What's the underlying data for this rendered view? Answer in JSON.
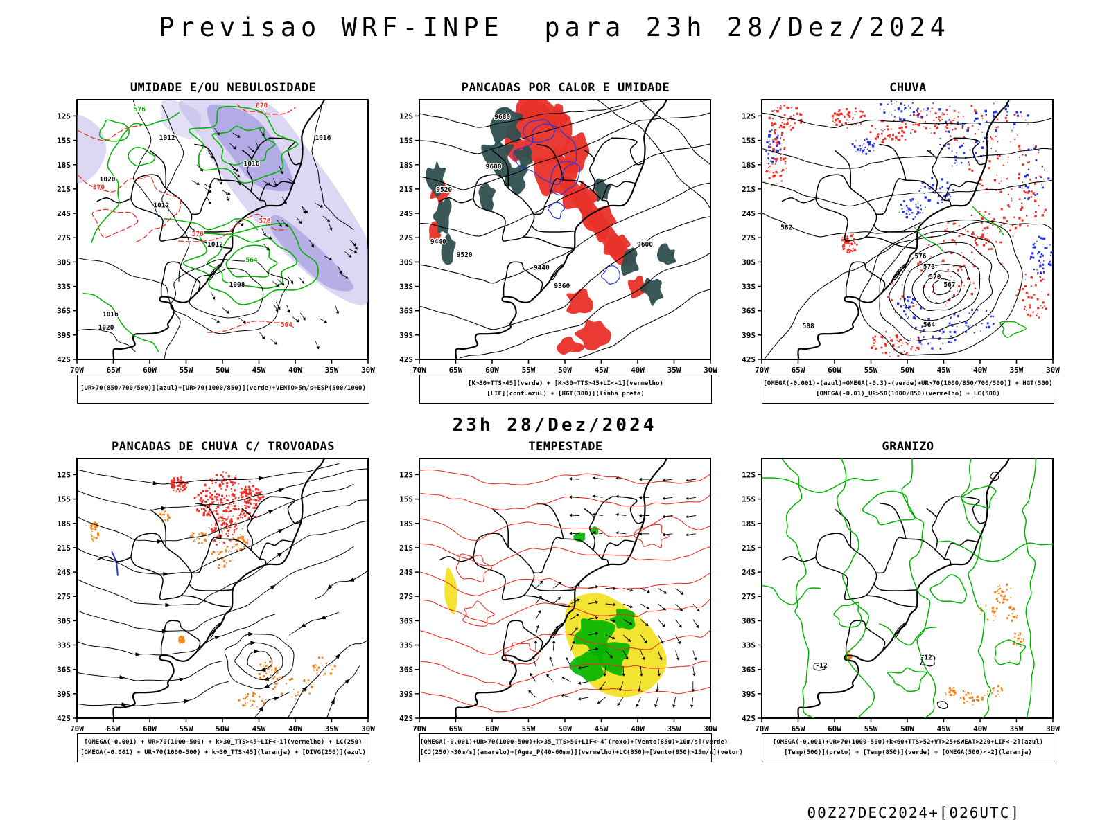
{
  "title": "Previsao WRF-INPE  para 23h 28/Dez/2024",
  "valid_label": "23h 28/Dez/2024",
  "run_label": "00Z27DEC2024+[026UTC]",
  "axes": {
    "lat_ticks": [
      "12S",
      "15S",
      "18S",
      "21S",
      "24S",
      "27S",
      "30S",
      "33S",
      "36S",
      "39S",
      "42S"
    ],
    "lon_ticks": [
      "70W",
      "65W",
      "60W",
      "55W",
      "50W",
      "45W",
      "40W",
      "35W",
      "30W"
    ]
  },
  "palette": {
    "green": "#00b400",
    "red": "#e83028",
    "blue": "#2336e0",
    "dark_teal": "#2f4f4f",
    "purple_light": "#b9b2e8",
    "purple_mid": "#8f86d8",
    "yellow": "#f2e326",
    "orange": "#f08018",
    "black": "#000000"
  },
  "panels": [
    {
      "id": "umidade",
      "title": "UMIDADE E/OU NEBULOSIDADE",
      "caption_lines": [
        "[UR>70(850/700/500)](azul)+[UR>70(1000/850)](verde)+VENTO>5m/s+ESP(500/1000)"
      ],
      "map_labels": [
        {
          "text": "1012",
          "fx": 0.31,
          "fy": 0.155,
          "color": "black"
        },
        {
          "text": "1016",
          "fx": 0.6,
          "fy": 0.255,
          "color": "black"
        },
        {
          "text": "1016",
          "fx": 0.845,
          "fy": 0.155,
          "color": "black"
        },
        {
          "text": "1020",
          "fx": 0.105,
          "fy": 0.315,
          "color": "black"
        },
        {
          "text": "1012",
          "fx": 0.29,
          "fy": 0.415,
          "color": "black"
        },
        {
          "text": "1012",
          "fx": 0.475,
          "fy": 0.565,
          "color": "black"
        },
        {
          "text": "1008",
          "fx": 0.55,
          "fy": 0.72,
          "color": "black"
        },
        {
          "text": "1016",
          "fx": 0.115,
          "fy": 0.835,
          "color": "black"
        },
        {
          "text": "1020",
          "fx": 0.1,
          "fy": 0.885,
          "color": "black"
        },
        {
          "text": "870",
          "fx": 0.635,
          "fy": 0.03,
          "color": "red"
        },
        {
          "text": "870",
          "fx": 0.075,
          "fy": 0.345,
          "color": "red"
        },
        {
          "text": "570",
          "fx": 0.415,
          "fy": 0.525,
          "color": "red"
        },
        {
          "text": "570",
          "fx": 0.645,
          "fy": 0.475,
          "color": "red"
        },
        {
          "text": "564",
          "fx": 0.72,
          "fy": 0.875,
          "color": "red"
        },
        {
          "text": "576",
          "fx": 0.215,
          "fy": 0.045,
          "color": "green"
        },
        {
          "text": "564",
          "fx": 0.6,
          "fy": 0.625,
          "color": "green"
        }
      ]
    },
    {
      "id": "pancadas",
      "title": "PANCADAS POR CALOR E UMIDADE",
      "caption_lines": [
        "[K>30+TTS>45](verde) + [K>30+TTS>45+LI<-1](vermelho)",
        "[LIF](cont.azul) + [HGT(300)](linha preta)"
      ],
      "map_labels": [
        {
          "text": "9680",
          "fx": 0.285,
          "fy": 0.075,
          "color": "black"
        },
        {
          "text": "9600",
          "fx": 0.255,
          "fy": 0.265,
          "color": "black"
        },
        {
          "text": "9520",
          "fx": 0.085,
          "fy": 0.355,
          "color": "black"
        },
        {
          "text": "9440",
          "fx": 0.065,
          "fy": 0.555,
          "color": "black"
        },
        {
          "text": "9520",
          "fx": 0.155,
          "fy": 0.605,
          "color": "black"
        },
        {
          "text": "9600",
          "fx": 0.775,
          "fy": 0.565,
          "color": "black"
        },
        {
          "text": "9440",
          "fx": 0.42,
          "fy": 0.655,
          "color": "black"
        },
        {
          "text": "9360",
          "fx": 0.49,
          "fy": 0.725,
          "color": "black"
        }
      ]
    },
    {
      "id": "chuva",
      "title": "CHUVA",
      "caption_lines": [
        "[OMEGA(-0.001)-(azul)+OMEGA(-0.3)-(verde)+UR>70(1000/850/700/500)] + HGT(500)",
        "[OMEGA(-0.01)_UR>50(1000/850)(vermelho) + LC(500)"
      ],
      "map_labels": [
        {
          "text": "582",
          "fx": 0.085,
          "fy": 0.5,
          "color": "black"
        },
        {
          "text": "576",
          "fx": 0.545,
          "fy": 0.61,
          "color": "black"
        },
        {
          "text": "573",
          "fx": 0.575,
          "fy": 0.65,
          "color": "black"
        },
        {
          "text": "570",
          "fx": 0.595,
          "fy": 0.69,
          "color": "black"
        },
        {
          "text": "567",
          "fx": 0.645,
          "fy": 0.72,
          "color": "black"
        },
        {
          "text": "564",
          "fx": 0.575,
          "fy": 0.875,
          "color": "black"
        },
        {
          "text": "588",
          "fx": 0.16,
          "fy": 0.88,
          "color": "black"
        }
      ]
    },
    {
      "id": "trovoadas",
      "title": "PANCADAS DE CHUVA C/ TROVOADAS",
      "caption_lines": [
        "[OMEGA(-0.001) + UR>70(1000-500) + k>30_TTS>45+LIF<-1](vermelho) + LC(250)",
        "[OMEGA(-0.001) + UR>70(1000-500) + k>30_TTS>45](laranja) + [DIVG(250)](azul)"
      ],
      "map_labels": []
    },
    {
      "id": "tempestade",
      "title": "TEMPESTADE",
      "caption_lines": [
        "[OMEGA(-0.001)+UR>70(1000-500)+k>35_TTS>50+LIF<-4](roxo)+[Vento(850)>10m/s](verde)",
        "[CJ(250)>30m/s](amarelo)+[Agua_P(40-60mm)](vermelho)+LC(850)+[Vento(850)>15m/s](vetor)"
      ],
      "map_labels": []
    },
    {
      "id": "granizo",
      "title": "GRANIZO",
      "caption_lines": [
        "[OMEGA(-0.001)+UR>70(1000-500)+k<60+TTS>52+VT>25+SWEAT>220+LIF<-2](azul)",
        "[Temp(500)](preto) + [Temp(850)](verde) + [OMEGA(500)<-2](laranja)"
      ],
      "map_labels": [
        {
          "text": "-12",
          "fx": 0.565,
          "fy": 0.775,
          "color": "black"
        },
        {
          "text": "-12",
          "fx": 0.205,
          "fy": 0.805,
          "color": "black"
        }
      ]
    }
  ]
}
